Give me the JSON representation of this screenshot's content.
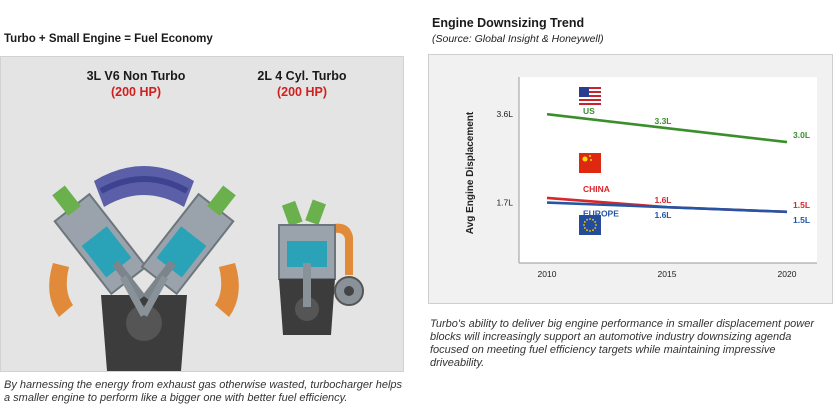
{
  "left": {
    "title": "Turbo + Small Engine = Fuel Economy",
    "engine_a": {
      "name": "3L V6 Non Turbo",
      "hp": "(200 HP)"
    },
    "engine_b": {
      "name": "2L 4 Cyl. Turbo",
      "hp": "(200 HP)"
    },
    "caption": "By harnessing the energy from exhaust gas otherwise wasted, turbocharger helps a smaller engine to perform like a bigger one with better fuel efficiency."
  },
  "right": {
    "caption": "Turbo's ability to deliver big engine performance in smaller displacement power blocks will increasingly support an automotive industry downsizing agenda focused on meeting fuel efficiency targets while maintaining impressive driveability."
  },
  "chart_data": {
    "type": "line",
    "title": "Engine Downsizing Trend",
    "subtitle": "(Source: Global Insight & Honeywell)",
    "ylabel": "Avg Engine Displacement",
    "xlabel": "",
    "x": [
      2010,
      2015,
      2020
    ],
    "xticks": [
      "2010",
      "2015",
      "2020"
    ],
    "yticks": [
      {
        "value": 1.7,
        "label": "1.7L"
      },
      {
        "value": 3.6,
        "label": "3.6L"
      }
    ],
    "xlim": [
      2010,
      2020
    ],
    "ylim": [
      0.4,
      4.4
    ],
    "grid": false,
    "series": [
      {
        "name": "US",
        "color": "#3a8f2b",
        "values": [
          3.6,
          3.3,
          3.0
        ],
        "labels": [
          "",
          "3.3L",
          "3.0L"
        ],
        "flag": "us-flag"
      },
      {
        "name": "CHINA",
        "color": "#d8262b",
        "values": [
          1.8,
          1.6,
          1.5
        ],
        "labels": [
          "",
          "1.6L",
          "1.5L"
        ],
        "flag": "china-flag"
      },
      {
        "name": "EUROPE",
        "color": "#2456a6",
        "values": [
          1.7,
          1.6,
          1.5
        ],
        "labels": [
          "",
          "1.6L",
          "1.5L"
        ],
        "flag": "eu-flag"
      }
    ]
  }
}
